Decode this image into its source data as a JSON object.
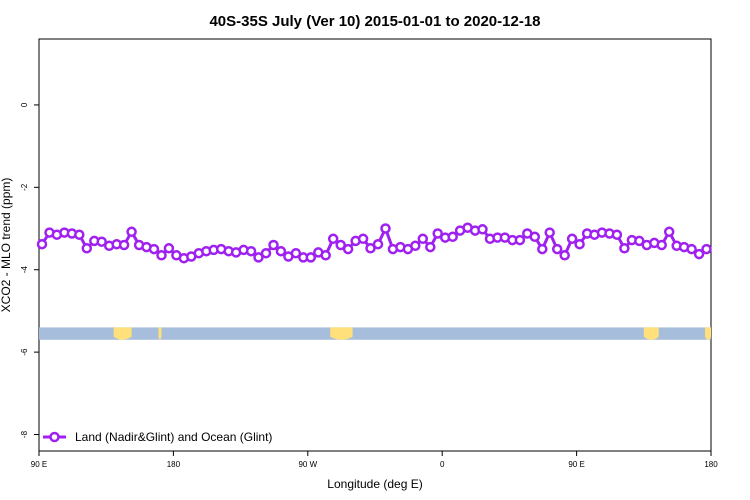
{
  "chart_data": {
    "type": "line",
    "title": "40S-35S July (Ver 10)   2015-01-01 to 2020-12-18",
    "xlabel": "Longitude (deg E)",
    "ylabel": "XCO2 - MLO trend (ppm)",
    "x_ticks": [
      {
        "value": 90,
        "label": "90 E"
      },
      {
        "value": 180,
        "label": "180"
      },
      {
        "value": 270,
        "label": "90 W"
      },
      {
        "value": 360,
        "label": "0"
      },
      {
        "value": 450,
        "label": "90 E"
      },
      {
        "value": 540,
        "label": "180"
      }
    ],
    "y_ticks": [
      {
        "value": 0,
        "label": "0"
      },
      {
        "value": -2,
        "label": "-2"
      },
      {
        "value": -4,
        "label": "-4"
      },
      {
        "value": -6,
        "label": "-6"
      },
      {
        "value": -8,
        "label": "-8"
      }
    ],
    "xlim": [
      90,
      540
    ],
    "ylim": [
      -8.4,
      1.6
    ],
    "grid": false,
    "legend_position": "bottom-left",
    "colors": {
      "series": "#a020f0",
      "ocean": "#a6bddb",
      "land": "#ffe07a"
    },
    "series": [
      {
        "name": "Land (Nadir&Glint) and Ocean (Glint)",
        "x_step": 5,
        "x_start": 92,
        "values": [
          -3.38,
          -3.1,
          -3.15,
          -3.1,
          -3.12,
          -3.15,
          -3.48,
          -3.3,
          -3.32,
          -3.42,
          -3.38,
          -3.4,
          -3.08,
          -3.4,
          -3.45,
          -3.5,
          -3.65,
          -3.48,
          -3.65,
          -3.72,
          -3.68,
          -3.6,
          -3.55,
          -3.52,
          -3.5,
          -3.55,
          -3.58,
          -3.52,
          -3.55,
          -3.7,
          -3.6,
          -3.4,
          -3.55,
          -3.68,
          -3.6,
          -3.7,
          -3.7,
          -3.58,
          -3.65,
          -3.25,
          -3.4,
          -3.5,
          -3.3,
          -3.25,
          -3.48,
          -3.38,
          -3.0,
          -3.5,
          -3.45,
          -3.5,
          -3.42,
          -3.25,
          -3.45,
          -3.12,
          -3.22,
          -3.2,
          -3.05,
          -2.98,
          -3.05,
          -3.02,
          -3.25,
          -3.22,
          -3.22,
          -3.28,
          -3.28,
          -3.12,
          -3.2,
          -3.5,
          -3.1,
          -3.5,
          -3.65,
          -3.25,
          -3.38,
          -3.12,
          -3.15,
          -3.1,
          -3.12,
          -3.15,
          -3.48,
          -3.28,
          -3.3,
          -3.4,
          -3.35,
          -3.4,
          -3.08,
          -3.42,
          -3.45,
          -3.5,
          -3.62,
          -3.5
        ]
      }
    ],
    "ocean_band": {
      "y_top": -5.4,
      "y_bottom": -5.7
    },
    "land_patches": [
      {
        "x_from": 140,
        "x_to": 152
      },
      {
        "x_from": 170,
        "x_to": 172
      },
      {
        "x_from": 285,
        "x_to": 300
      },
      {
        "x_from": 495,
        "x_to": 505
      },
      {
        "x_from": 536,
        "x_to": 540
      }
    ]
  }
}
